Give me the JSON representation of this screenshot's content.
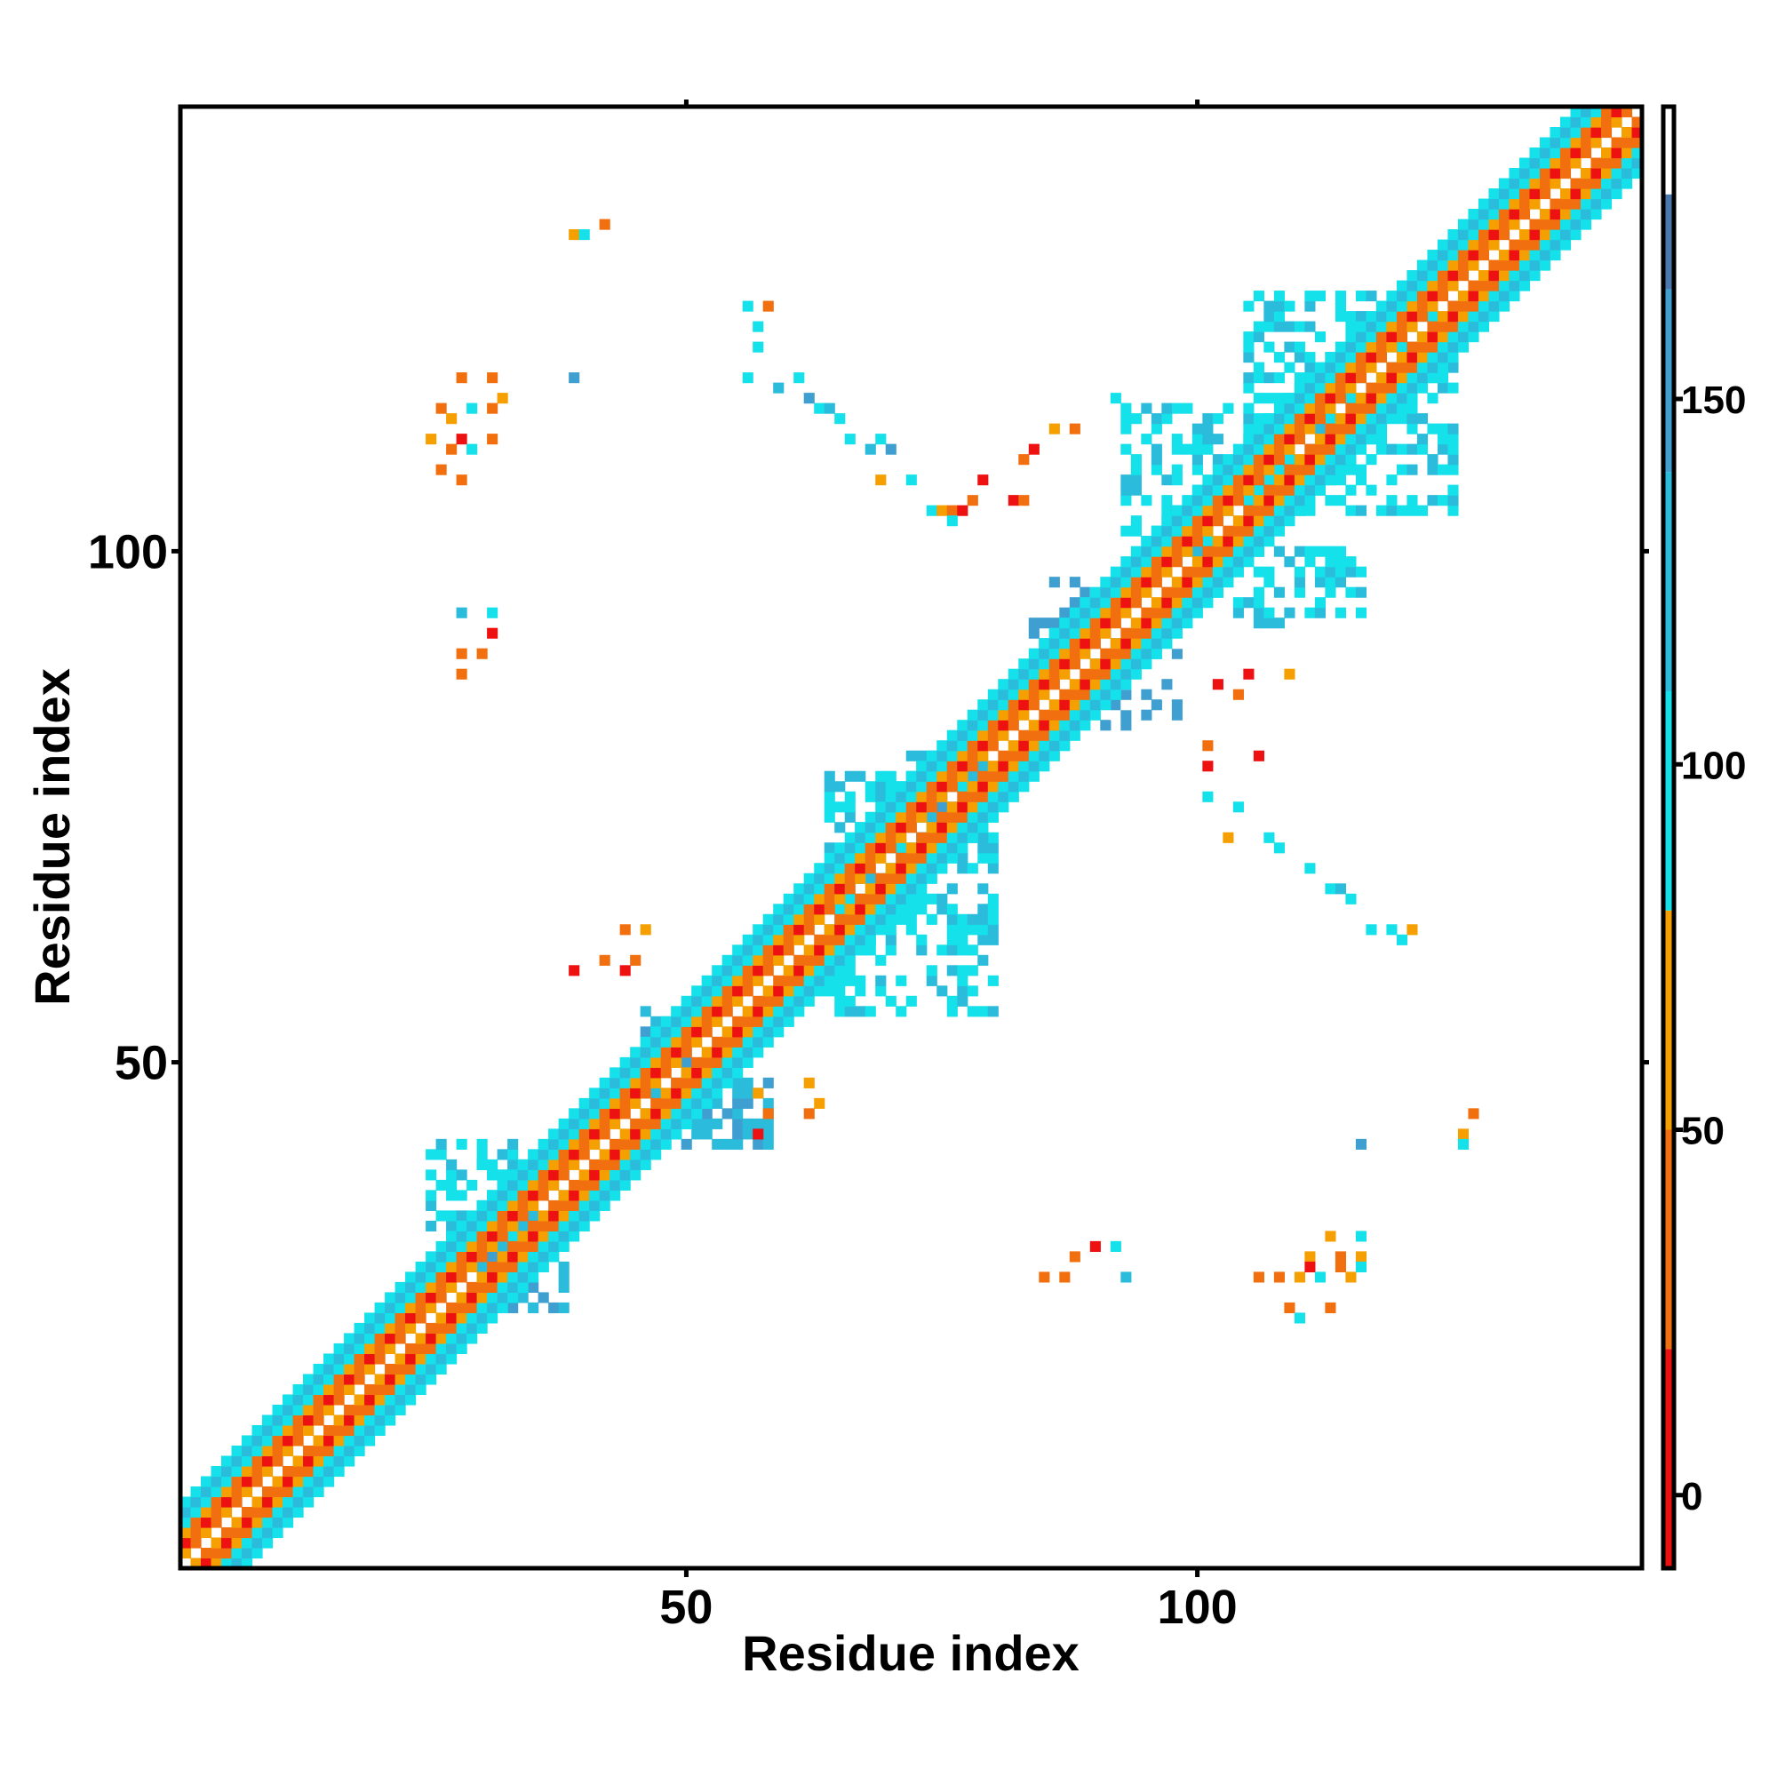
{
  "chart_data": {
    "type": "heatmap",
    "xlabel": "Residue index",
    "ylabel": "Residue index",
    "xlim": [
      1,
      143
    ],
    "ylim": [
      1,
      143
    ],
    "xticks": [
      50,
      100
    ],
    "yticks": [
      50,
      100
    ],
    "xtick_labels": [
      "50",
      "100"
    ],
    "ytick_labels": [
      "50",
      "100"
    ],
    "grid": false,
    "colorbar": {
      "range": [
        -10,
        190
      ],
      "ticks": [
        0,
        50,
        100,
        150
      ],
      "tick_labels": [
        "0",
        "50",
        "100",
        "150"
      ],
      "bands": [
        {
          "from": -10,
          "to": 20,
          "color": "#ee1111"
        },
        {
          "from": 20,
          "to": 50,
          "color": "#f26f0f"
        },
        {
          "from": 50,
          "to": 80,
          "color": "#f5a000"
        },
        {
          "from": 80,
          "to": 110,
          "color": "#14e1ea"
        },
        {
          "from": 110,
          "to": 140,
          "color": "#2bbcdc"
        },
        {
          "from": 140,
          "to": 165,
          "color": "#3f9fd0"
        },
        {
          "from": 165,
          "to": 178,
          "color": "#4a77ae"
        },
        {
          "from": 178,
          "to": 190,
          "color": "#ffffff"
        }
      ]
    },
    "diagonal_band": {
      "x_range": [
        1,
        143
      ],
      "offsets": [
        {
          "offset": 1,
          "value": 40
        },
        {
          "offset": 2,
          "value": 10
        },
        {
          "offset": 3,
          "value": 40
        },
        {
          "offset": 4,
          "value": 95
        },
        {
          "offset": 5,
          "value": 120
        },
        {
          "offset": 6,
          "value": 100
        }
      ]
    },
    "regions": [
      {
        "x": [
          30,
          38
        ],
        "y": [
          26,
          40
        ],
        "value": 120
      },
      {
        "x": [
          25,
          33
        ],
        "y": [
          33,
          42
        ],
        "value": 100
      },
      {
        "x": [
          46,
          50
        ],
        "y": [
          45,
          55
        ],
        "value": 120
      },
      {
        "x": [
          49,
          58
        ],
        "y": [
          42,
          48
        ],
        "value": 110
      },
      {
        "x": [
          64,
          80
        ],
        "y": [
          55,
          78
        ],
        "value": 100
      },
      {
        "x": [
          72,
          79
        ],
        "y": [
          72,
          80
        ],
        "value": 110
      },
      {
        "x": [
          84,
          91
        ],
        "y": [
          88,
          97
        ],
        "value": 150
      },
      {
        "x": [
          91,
          98
        ],
        "y": [
          83,
          91
        ],
        "value": 150
      },
      {
        "x": [
          93,
          103
        ],
        "y": [
          100,
          114
        ],
        "value": 100
      },
      {
        "x": [
          102,
          116
        ],
        "y": [
          93,
          100
        ],
        "value": 100
      },
      {
        "x": [
          105,
          125
        ],
        "y": [
          104,
          125
        ],
        "value": 100
      }
    ],
    "points": [
      {
        "x": 39,
        "y": 131,
        "value": 60
      },
      {
        "x": 40,
        "y": 131,
        "value": 100
      },
      {
        "x": 42,
        "y": 132,
        "value": 40
      },
      {
        "x": 56,
        "y": 124,
        "value": 100
      },
      {
        "x": 58,
        "y": 124,
        "value": 40
      },
      {
        "x": 57,
        "y": 122,
        "value": 100
      },
      {
        "x": 57,
        "y": 120,
        "value": 100
      },
      {
        "x": 56,
        "y": 117,
        "value": 100
      },
      {
        "x": 59,
        "y": 116,
        "value": 120
      },
      {
        "x": 61,
        "y": 117,
        "value": 100
      },
      {
        "x": 62,
        "y": 115,
        "value": 160
      },
      {
        "x": 63,
        "y": 114,
        "value": 100
      },
      {
        "x": 64,
        "y": 114,
        "value": 120
      },
      {
        "x": 65,
        "y": 113,
        "value": 100
      },
      {
        "x": 66,
        "y": 111,
        "value": 100
      },
      {
        "x": 68,
        "y": 110,
        "value": 120
      },
      {
        "x": 69,
        "y": 111,
        "value": 100
      },
      {
        "x": 70,
        "y": 110,
        "value": 160
      },
      {
        "x": 69,
        "y": 107,
        "value": 60
      },
      {
        "x": 72,
        "y": 107,
        "value": 100
      },
      {
        "x": 74,
        "y": 104,
        "value": 100
      },
      {
        "x": 75,
        "y": 104,
        "value": 60
      },
      {
        "x": 76,
        "y": 104,
        "value": 40
      },
      {
        "x": 77,
        "y": 104,
        "value": 10
      },
      {
        "x": 78,
        "y": 105,
        "value": 40
      },
      {
        "x": 79,
        "y": 107,
        "value": 10
      },
      {
        "x": 76,
        "y": 103,
        "value": 100
      },
      {
        "x": 83,
        "y": 109,
        "value": 40
      },
      {
        "x": 84,
        "y": 110,
        "value": 10
      },
      {
        "x": 82,
        "y": 105,
        "value": 10
      },
      {
        "x": 83,
        "y": 105,
        "value": 40
      },
      {
        "x": 86,
        "y": 112,
        "value": 60
      },
      {
        "x": 88,
        "y": 112,
        "value": 40
      },
      {
        "x": 92,
        "y": 115,
        "value": 100
      },
      {
        "x": 93,
        "y": 113,
        "value": 100
      },
      {
        "x": 28,
        "y": 117,
        "value": 40
      },
      {
        "x": 31,
        "y": 117,
        "value": 40
      },
      {
        "x": 26,
        "y": 114,
        "value": 40
      },
      {
        "x": 27,
        "y": 113,
        "value": 60
      },
      {
        "x": 29,
        "y": 114,
        "value": 100
      },
      {
        "x": 31,
        "y": 114,
        "value": 40
      },
      {
        "x": 32,
        "y": 115,
        "value": 60
      },
      {
        "x": 25,
        "y": 111,
        "value": 60
      },
      {
        "x": 27,
        "y": 110,
        "value": 40
      },
      {
        "x": 28,
        "y": 111,
        "value": 10
      },
      {
        "x": 29,
        "y": 110,
        "value": 100
      },
      {
        "x": 31,
        "y": 111,
        "value": 40
      },
      {
        "x": 26,
        "y": 108,
        "value": 40
      },
      {
        "x": 28,
        "y": 107,
        "value": 40
      },
      {
        "x": 39,
        "y": 117,
        "value": 160
      },
      {
        "x": 28,
        "y": 94,
        "value": 120
      },
      {
        "x": 31,
        "y": 94,
        "value": 100
      },
      {
        "x": 31,
        "y": 92,
        "value": 10
      },
      {
        "x": 28,
        "y": 90,
        "value": 40
      },
      {
        "x": 30,
        "y": 90,
        "value": 40
      },
      {
        "x": 28,
        "y": 88,
        "value": 40
      },
      {
        "x": 44,
        "y": 63,
        "value": 40
      },
      {
        "x": 46,
        "y": 63,
        "value": 60
      },
      {
        "x": 39,
        "y": 59,
        "value": 10
      },
      {
        "x": 42,
        "y": 60,
        "value": 40
      },
      {
        "x": 44,
        "y": 59,
        "value": 10
      },
      {
        "x": 45,
        "y": 60,
        "value": 40
      },
      {
        "x": 57,
        "y": 47,
        "value": 60
      },
      {
        "x": 58,
        "y": 45,
        "value": 40
      },
      {
        "x": 57,
        "y": 43,
        "value": 10
      },
      {
        "x": 62,
        "y": 48,
        "value": 60
      },
      {
        "x": 63,
        "y": 46,
        "value": 60
      },
      {
        "x": 62,
        "y": 45,
        "value": 40
      },
      {
        "x": 102,
        "y": 87,
        "value": 10
      },
      {
        "x": 104,
        "y": 86,
        "value": 40
      },
      {
        "x": 105,
        "y": 88,
        "value": 10
      },
      {
        "x": 109,
        "y": 88,
        "value": 60
      },
      {
        "x": 101,
        "y": 81,
        "value": 40
      },
      {
        "x": 101,
        "y": 79,
        "value": 10
      },
      {
        "x": 106,
        "y": 80,
        "value": 10
      },
      {
        "x": 101,
        "y": 76,
        "value": 100
      },
      {
        "x": 104,
        "y": 75,
        "value": 100
      },
      {
        "x": 103,
        "y": 72,
        "value": 60
      },
      {
        "x": 107,
        "y": 72,
        "value": 100
      },
      {
        "x": 108,
        "y": 71,
        "value": 100
      },
      {
        "x": 111,
        "y": 69,
        "value": 100
      },
      {
        "x": 113,
        "y": 67,
        "value": 100
      },
      {
        "x": 114,
        "y": 67,
        "value": 120
      },
      {
        "x": 115,
        "y": 66,
        "value": 100
      },
      {
        "x": 117,
        "y": 63,
        "value": 100
      },
      {
        "x": 119,
        "y": 63,
        "value": 100
      },
      {
        "x": 121,
        "y": 63,
        "value": 60
      },
      {
        "x": 120,
        "y": 62,
        "value": 100
      },
      {
        "x": 127,
        "y": 45,
        "value": 40
      },
      {
        "x": 126,
        "y": 43,
        "value": 60
      },
      {
        "x": 126,
        "y": 42,
        "value": 100
      },
      {
        "x": 116,
        "y": 42,
        "value": 160
      },
      {
        "x": 88,
        "y": 31,
        "value": 40
      },
      {
        "x": 90,
        "y": 32,
        "value": 10
      },
      {
        "x": 92,
        "y": 32,
        "value": 100
      },
      {
        "x": 85,
        "y": 29,
        "value": 40
      },
      {
        "x": 87,
        "y": 29,
        "value": 40
      },
      {
        "x": 93,
        "y": 29,
        "value": 120
      },
      {
        "x": 113,
        "y": 33,
        "value": 60
      },
      {
        "x": 116,
        "y": 33,
        "value": 100
      },
      {
        "x": 111,
        "y": 31,
        "value": 60
      },
      {
        "x": 114,
        "y": 31,
        "value": 40
      },
      {
        "x": 116,
        "y": 31,
        "value": 60
      },
      {
        "x": 108,
        "y": 29,
        "value": 40
      },
      {
        "x": 110,
        "y": 29,
        "value": 60
      },
      {
        "x": 111,
        "y": 30,
        "value": 10
      },
      {
        "x": 112,
        "y": 29,
        "value": 100
      },
      {
        "x": 114,
        "y": 30,
        "value": 40
      },
      {
        "x": 115,
        "y": 29,
        "value": 60
      },
      {
        "x": 109,
        "y": 26,
        "value": 40
      },
      {
        "x": 110,
        "y": 25,
        "value": 100
      },
      {
        "x": 113,
        "y": 26,
        "value": 40
      },
      {
        "x": 116,
        "y": 30,
        "value": 100
      },
      {
        "x": 106,
        "y": 29,
        "value": 40
      }
    ]
  }
}
